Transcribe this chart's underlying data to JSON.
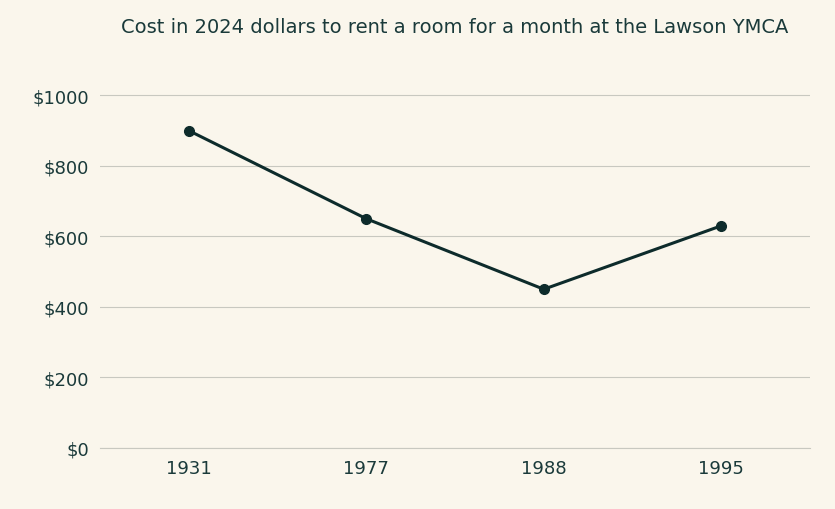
{
  "title": "Cost in 2024 dollars to rent a room for a month at the Lawson YMCA",
  "x_positions": [
    0,
    1,
    2,
    3
  ],
  "y_values": [
    900,
    650,
    450,
    630
  ],
  "yticks": [
    0,
    200,
    400,
    600,
    800,
    1000
  ],
  "ytick_labels": [
    "$0",
    "$200",
    "$400",
    "$600",
    "$800",
    "$1000"
  ],
  "xtick_labels": [
    "1931",
    "1977",
    "1988",
    "1995"
  ],
  "ylim": [
    0,
    1100
  ],
  "xlim": [
    -0.5,
    3.5
  ],
  "line_color": "#0d2b2b",
  "marker_color": "#0d2b2b",
  "background_color": "#faf6ec",
  "grid_color": "#c8c8c0",
  "text_color": "#1a3a3a",
  "title_fontsize": 14,
  "tick_fontsize": 13,
  "line_width": 2.2,
  "marker_size": 7
}
